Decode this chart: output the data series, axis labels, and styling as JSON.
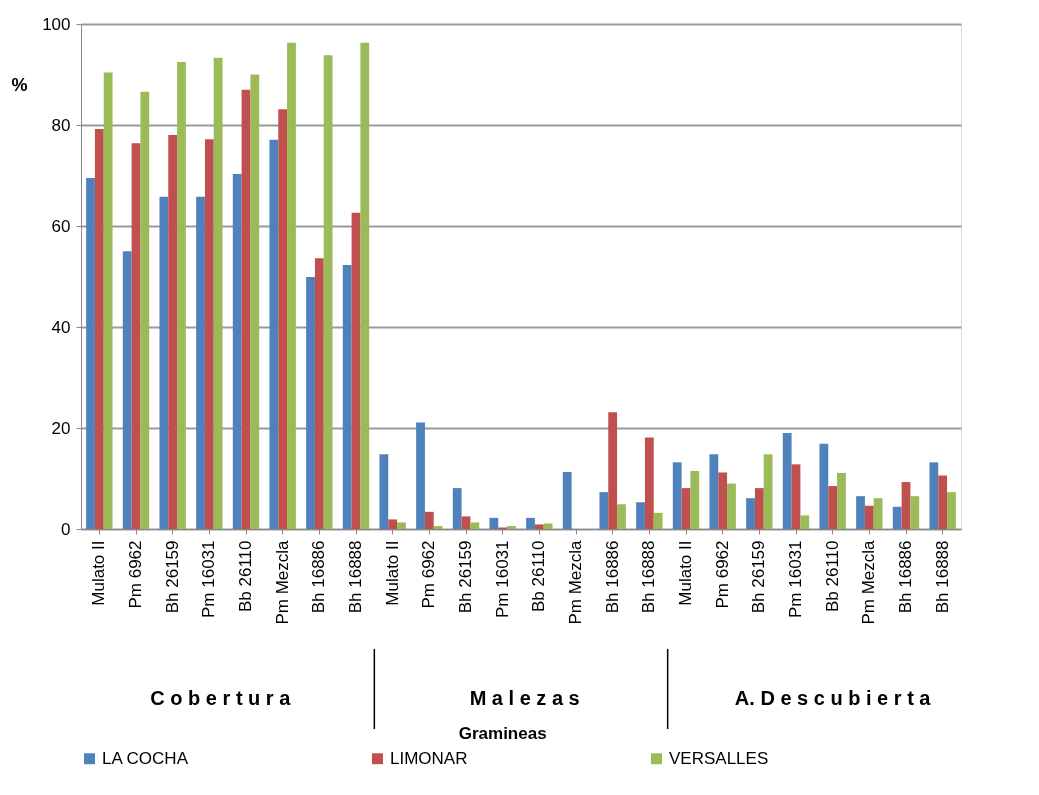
{
  "chart_data": {
    "type": "bar",
    "ylabel": "%",
    "categories": [
      "Mulato II",
      "Pm 6962",
      "Bh 26159",
      "Pm 16031",
      "Bb 26110",
      "Pm Mezcla",
      "Bh 16886",
      "Bh 16888",
      "Mulato II",
      "Pm 6962",
      "Bh 26159",
      "Pm 16031",
      "Bb 26110",
      "Pm Mezcla",
      "Bh 16886",
      "Bh 16888",
      "Mulato II",
      "Pm 6962",
      "Bh 26159",
      "Pm 16031",
      "Bb 26110",
      "Pm Mezcla",
      "Bh 16886",
      "Bh 16888"
    ],
    "series": [
      {
        "name": "LA COCHA",
        "color": "#4f81bd",
        "values": [
          69.5,
          55,
          65.8,
          65.8,
          70.3,
          77.1,
          49.9,
          52.3,
          14.8,
          21.1,
          8.1,
          2.2,
          2.2,
          11.3,
          7.3,
          5.3,
          13.2,
          14.8,
          6.1,
          19,
          16.9,
          6.5,
          4.4,
          13.2
        ]
      },
      {
        "name": "LIMONAR",
        "color": "#c0504d",
        "values": [
          79.2,
          76.4,
          78,
          77.2,
          87,
          83.1,
          53.6,
          62.6,
          1.9,
          3.4,
          2.5,
          0.3,
          0.9,
          0,
          23.1,
          18.1,
          8.1,
          11.2,
          8.1,
          12.8,
          8.5,
          4.6,
          9.3,
          10.6
        ]
      },
      {
        "name": "VERSALLES",
        "color": "#9bbb59",
        "values": [
          90.4,
          86.6,
          92.5,
          93.3,
          90,
          96.3,
          93.8,
          96.3,
          1.3,
          0.6,
          1.3,
          0.6,
          1.1,
          0,
          4.9,
          3.2,
          11.5,
          9,
          14.8,
          2.7,
          11.1,
          6.1,
          6.5,
          7.3
        ]
      }
    ],
    "ylim": [
      0,
      100
    ],
    "yticks": [
      0,
      20,
      40,
      60,
      80,
      100
    ],
    "grid": "y",
    "legend": "bottom",
    "annotations": [
      "C o b e r t u r a",
      "M a l e z a s",
      "Gramineas",
      "A.  D e s c u b i e r t a"
    ]
  }
}
